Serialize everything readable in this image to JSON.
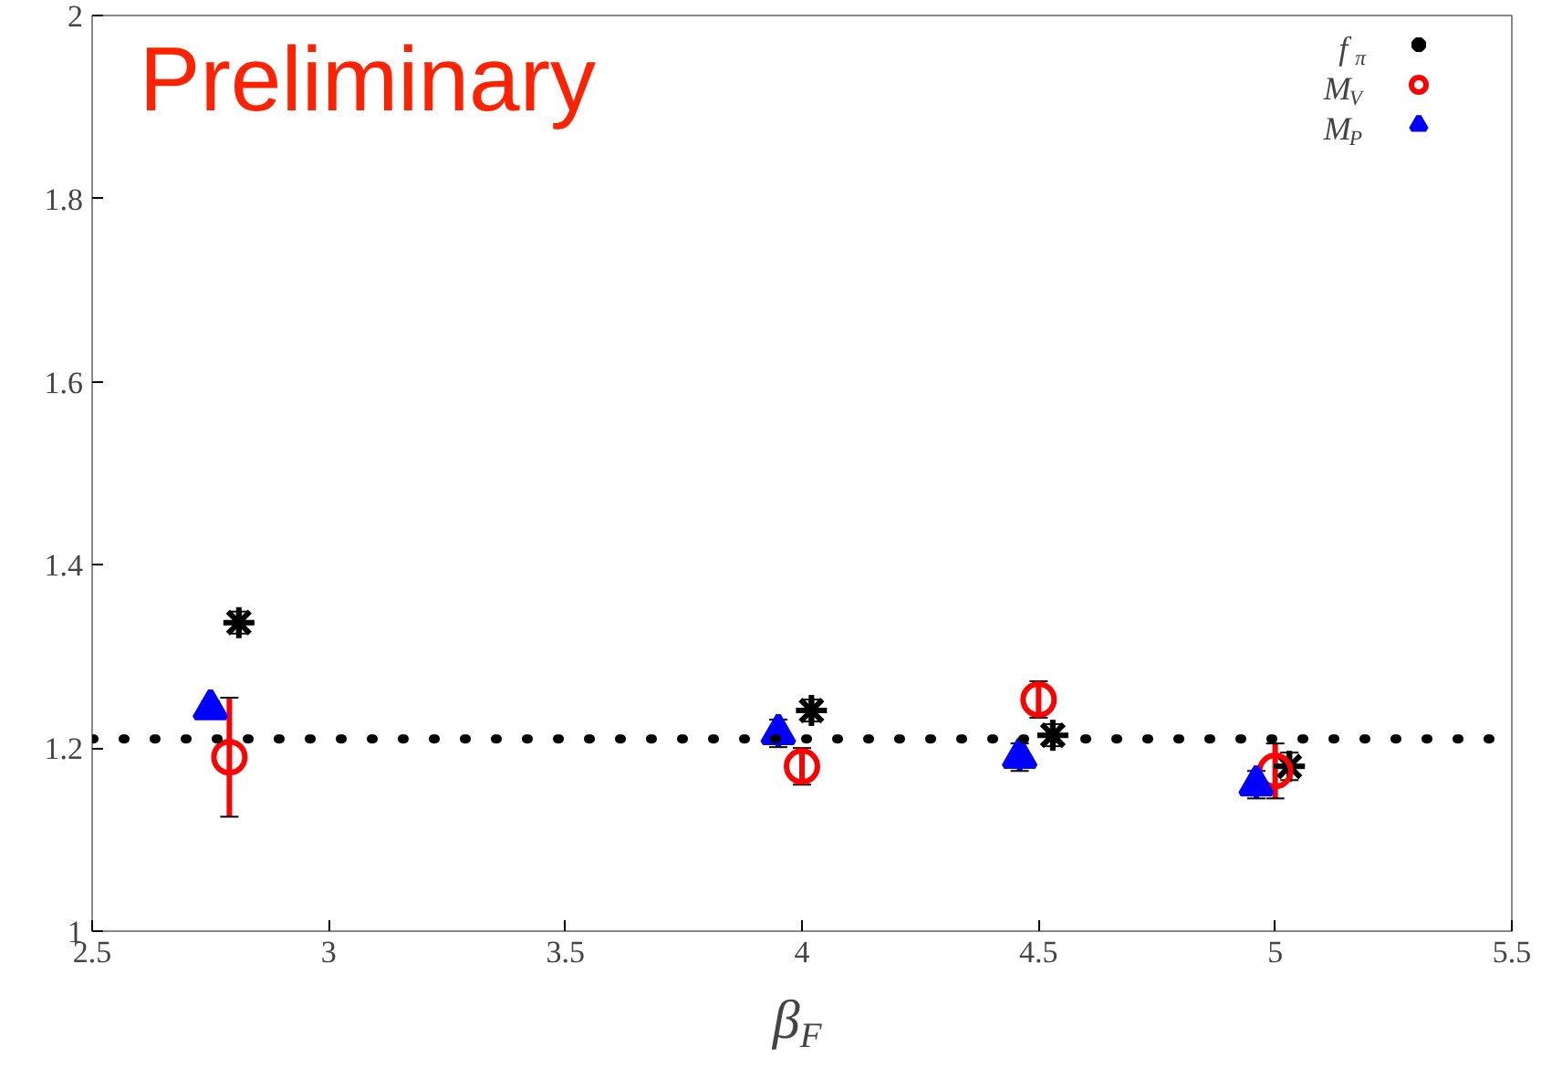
{
  "chart_data": {
    "type": "scatter",
    "xlabel": "β$_{F}$",
    "xlim": [
      2.5,
      5.5
    ],
    "ylim": [
      1,
      2
    ],
    "xticks": [
      2.5,
      3,
      3.5,
      4,
      4.5,
      5,
      5.5
    ],
    "yticks": [
      1,
      1.2,
      1.4,
      1.6,
      1.8,
      2
    ],
    "grid": false,
    "legend": "top right",
    "series": [
      {
        "name": "f$_{π}$",
        "color": "#000000",
        "marker": "cross",
        "x": [
          2.81,
          4.02,
          4.53,
          5.03
        ],
        "values": [
          1.337,
          1.241,
          1.214,
          1.18
        ],
        "errors": [
          0.012,
          0.012,
          0.012,
          0.015
        ]
      },
      {
        "name": "M$_{V}$",
        "color": "#ff0000",
        "marker": "circle",
        "x": [
          2.79,
          4.0,
          4.5,
          5.0
        ],
        "values": [
          1.19,
          1.18,
          1.253,
          1.175
        ],
        "errors": [
          [
            1.125,
            1.255
          ],
          0.02,
          0.02,
          0.03
        ]
      },
      {
        "name": "M$_{P}$",
        "color": "#0000ff",
        "marker": "triangle",
        "x": [
          2.75,
          3.95,
          4.46,
          4.96
        ],
        "values": [
          1.243,
          1.216,
          1.19,
          1.16
        ],
        "errors": [
          0.008,
          0.015,
          0.015,
          0.015
        ]
      }
    ],
    "ref_lines": [
      {
        "axis": "y",
        "value": 1.21,
        "label": null,
        "color": "#000000",
        "line_style": "dotted"
      }
    ],
    "annotations": [
      "Preliminary"
    ]
  }
}
